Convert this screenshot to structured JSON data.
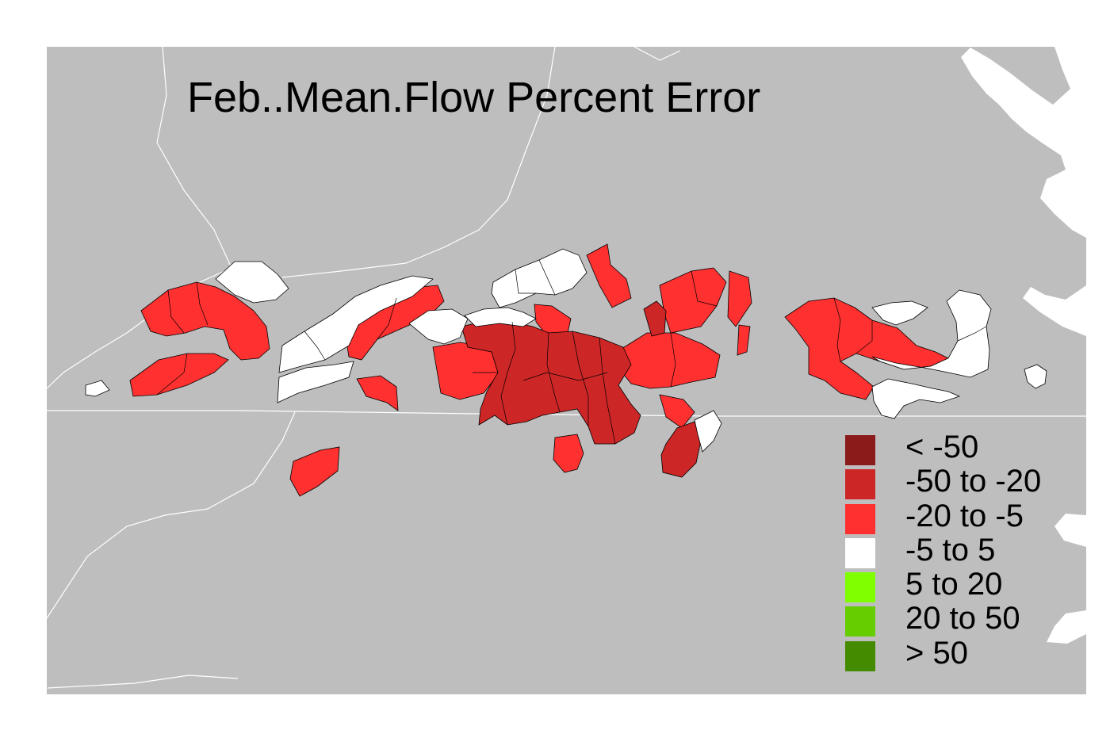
{
  "map": {
    "title": "Feb..Mean.Flow Percent Error",
    "background_color": "#bebebe",
    "water_color": "#ffffff",
    "boundary_color": "#ffffff",
    "legend": {
      "items": [
        {
          "label": "< -50",
          "color": "#8b1a1a"
        },
        {
          "label": "-50 to -20",
          "color": "#cd2626"
        },
        {
          "label": "-20 to -5",
          "color": "#ff3030"
        },
        {
          "label": "-5 to 5",
          "color": "#ffffff"
        },
        {
          "label": "5 to 20",
          "color": "#7fff00"
        },
        {
          "label": "20 to 50",
          "color": "#66cd00"
        },
        {
          "label": "> 50",
          "color": "#458b00"
        }
      ]
    }
  }
}
